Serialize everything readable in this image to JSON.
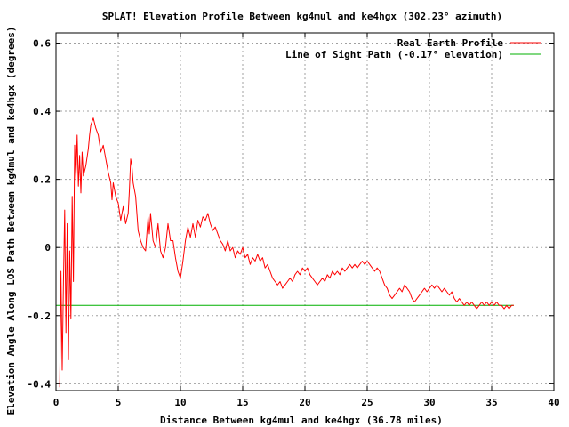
{
  "chart_data": {
    "type": "line",
    "title": "SPLAT! Elevation Profile Between kg4mul and ke4hgx (302.23° azimuth)",
    "xlabel": "Distance Between kg4mul and ke4hgx (36.78 miles)",
    "ylabel": "Elevation Angle Along LOS Path Between kg4mul and ke4hgx (degrees)",
    "xlim": [
      0,
      40
    ],
    "ylim": [
      -0.42,
      0.63
    ],
    "x_ticks": [
      0,
      5,
      10,
      15,
      20,
      25,
      30,
      35,
      40
    ],
    "x_tick_labels": [
      "0",
      "5",
      "10",
      "15",
      "20",
      "25",
      "30",
      "35",
      "40"
    ],
    "y_ticks": [
      -0.4,
      -0.2,
      0,
      0.2,
      0.4,
      0.6
    ],
    "y_tick_labels": [
      "-0.4",
      "-0.2",
      "0",
      "0.2",
      "0.4",
      "0.6"
    ],
    "grid": true,
    "legend_position": "top-right",
    "series": [
      {
        "name": "Real Earth Profile",
        "color": "#ff0000",
        "points": [
          [
            0.3,
            -0.41
          ],
          [
            0.4,
            -0.07
          ],
          [
            0.5,
            -0.36
          ],
          [
            0.6,
            -0.1
          ],
          [
            0.7,
            0.11
          ],
          [
            0.8,
            -0.25
          ],
          [
            0.9,
            0.07
          ],
          [
            1.0,
            -0.33
          ],
          [
            1.1,
            -0.01
          ],
          [
            1.2,
            -0.21
          ],
          [
            1.3,
            0.15
          ],
          [
            1.4,
            -0.1
          ],
          [
            1.5,
            0.3
          ],
          [
            1.6,
            0.2
          ],
          [
            1.7,
            0.33
          ],
          [
            1.8,
            0.18
          ],
          [
            1.9,
            0.27
          ],
          [
            2.0,
            0.16
          ],
          [
            2.1,
            0.28
          ],
          [
            2.2,
            0.21
          ],
          [
            2.4,
            0.24
          ],
          [
            2.6,
            0.29
          ],
          [
            2.7,
            0.33
          ],
          [
            2.8,
            0.36
          ],
          [
            3.0,
            0.38
          ],
          [
            3.2,
            0.35
          ],
          [
            3.4,
            0.33
          ],
          [
            3.6,
            0.28
          ],
          [
            3.8,
            0.3
          ],
          [
            4.0,
            0.26
          ],
          [
            4.2,
            0.22
          ],
          [
            4.4,
            0.19
          ],
          [
            4.5,
            0.14
          ],
          [
            4.6,
            0.19
          ],
          [
            4.8,
            0.15
          ],
          [
            5.0,
            0.13
          ],
          [
            5.2,
            0.08
          ],
          [
            5.4,
            0.12
          ],
          [
            5.6,
            0.07
          ],
          [
            5.8,
            0.1
          ],
          [
            5.9,
            0.17
          ],
          [
            6.0,
            0.26
          ],
          [
            6.1,
            0.24
          ],
          [
            6.2,
            0.19
          ],
          [
            6.4,
            0.15
          ],
          [
            6.6,
            0.05
          ],
          [
            6.8,
            0.02
          ],
          [
            7.0,
            0.0
          ],
          [
            7.2,
            -0.01
          ],
          [
            7.4,
            0.09
          ],
          [
            7.5,
            0.04
          ],
          [
            7.6,
            0.1
          ],
          [
            7.8,
            0.02
          ],
          [
            8.0,
            0.0
          ],
          [
            8.2,
            0.07
          ],
          [
            8.4,
            -0.01
          ],
          [
            8.6,
            -0.03
          ],
          [
            8.8,
            0.0
          ],
          [
            9.0,
            0.07
          ],
          [
            9.2,
            0.02
          ],
          [
            9.4,
            0.02
          ],
          [
            9.6,
            -0.03
          ],
          [
            9.8,
            -0.07
          ],
          [
            10.0,
            -0.09
          ],
          [
            10.2,
            -0.04
          ],
          [
            10.4,
            0.02
          ],
          [
            10.6,
            0.06
          ],
          [
            10.8,
            0.03
          ],
          [
            11.0,
            0.07
          ],
          [
            11.2,
            0.03
          ],
          [
            11.4,
            0.08
          ],
          [
            11.6,
            0.06
          ],
          [
            11.8,
            0.09
          ],
          [
            12.0,
            0.08
          ],
          [
            12.2,
            0.1
          ],
          [
            12.4,
            0.07
          ],
          [
            12.6,
            0.05
          ],
          [
            12.8,
            0.06
          ],
          [
            13.0,
            0.04
          ],
          [
            13.2,
            0.02
          ],
          [
            13.4,
            0.01
          ],
          [
            13.6,
            -0.01
          ],
          [
            13.8,
            0.02
          ],
          [
            14.0,
            -0.01
          ],
          [
            14.2,
            0.0
          ],
          [
            14.4,
            -0.03
          ],
          [
            14.6,
            -0.01
          ],
          [
            14.8,
            -0.02
          ],
          [
            15.0,
            0.0
          ],
          [
            15.2,
            -0.03
          ],
          [
            15.4,
            -0.02
          ],
          [
            15.6,
            -0.05
          ],
          [
            15.8,
            -0.03
          ],
          [
            16.0,
            -0.04
          ],
          [
            16.2,
            -0.02
          ],
          [
            16.4,
            -0.04
          ],
          [
            16.6,
            -0.03
          ],
          [
            16.8,
            -0.06
          ],
          [
            17.0,
            -0.05
          ],
          [
            17.2,
            -0.07
          ],
          [
            17.4,
            -0.09
          ],
          [
            17.6,
            -0.1
          ],
          [
            17.8,
            -0.11
          ],
          [
            18.0,
            -0.1
          ],
          [
            18.2,
            -0.12
          ],
          [
            18.4,
            -0.11
          ],
          [
            18.6,
            -0.1
          ],
          [
            18.8,
            -0.09
          ],
          [
            19.0,
            -0.1
          ],
          [
            19.2,
            -0.08
          ],
          [
            19.4,
            -0.07
          ],
          [
            19.6,
            -0.08
          ],
          [
            19.8,
            -0.06
          ],
          [
            20.0,
            -0.07
          ],
          [
            20.2,
            -0.06
          ],
          [
            20.4,
            -0.08
          ],
          [
            20.6,
            -0.09
          ],
          [
            20.8,
            -0.1
          ],
          [
            21.0,
            -0.11
          ],
          [
            21.2,
            -0.1
          ],
          [
            21.4,
            -0.09
          ],
          [
            21.6,
            -0.1
          ],
          [
            21.8,
            -0.08
          ],
          [
            22.0,
            -0.09
          ],
          [
            22.2,
            -0.07
          ],
          [
            22.4,
            -0.08
          ],
          [
            22.6,
            -0.07
          ],
          [
            22.8,
            -0.08
          ],
          [
            23.0,
            -0.06
          ],
          [
            23.2,
            -0.07
          ],
          [
            23.4,
            -0.06
          ],
          [
            23.6,
            -0.05
          ],
          [
            23.8,
            -0.06
          ],
          [
            24.0,
            -0.05
          ],
          [
            24.2,
            -0.06
          ],
          [
            24.4,
            -0.05
          ],
          [
            24.6,
            -0.04
          ],
          [
            24.8,
            -0.05
          ],
          [
            25.0,
            -0.04
          ],
          [
            25.2,
            -0.05
          ],
          [
            25.4,
            -0.06
          ],
          [
            25.6,
            -0.07
          ],
          [
            25.8,
            -0.06
          ],
          [
            26.0,
            -0.07
          ],
          [
            26.2,
            -0.09
          ],
          [
            26.4,
            -0.11
          ],
          [
            26.6,
            -0.12
          ],
          [
            26.8,
            -0.14
          ],
          [
            27.0,
            -0.15
          ],
          [
            27.2,
            -0.14
          ],
          [
            27.4,
            -0.13
          ],
          [
            27.6,
            -0.12
          ],
          [
            27.8,
            -0.13
          ],
          [
            28.0,
            -0.11
          ],
          [
            28.2,
            -0.12
          ],
          [
            28.4,
            -0.13
          ],
          [
            28.6,
            -0.15
          ],
          [
            28.8,
            -0.16
          ],
          [
            29.0,
            -0.15
          ],
          [
            29.2,
            -0.14
          ],
          [
            29.4,
            -0.13
          ],
          [
            29.6,
            -0.12
          ],
          [
            29.8,
            -0.13
          ],
          [
            30.0,
            -0.12
          ],
          [
            30.2,
            -0.11
          ],
          [
            30.4,
            -0.12
          ],
          [
            30.6,
            -0.11
          ],
          [
            30.8,
            -0.12
          ],
          [
            31.0,
            -0.13
          ],
          [
            31.2,
            -0.12
          ],
          [
            31.4,
            -0.13
          ],
          [
            31.6,
            -0.14
          ],
          [
            31.8,
            -0.13
          ],
          [
            32.0,
            -0.15
          ],
          [
            32.2,
            -0.16
          ],
          [
            32.4,
            -0.15
          ],
          [
            32.6,
            -0.16
          ],
          [
            32.8,
            -0.17
          ],
          [
            33.0,
            -0.16
          ],
          [
            33.2,
            -0.17
          ],
          [
            33.4,
            -0.16
          ],
          [
            33.6,
            -0.17
          ],
          [
            33.8,
            -0.18
          ],
          [
            34.0,
            -0.17
          ],
          [
            34.2,
            -0.16
          ],
          [
            34.4,
            -0.17
          ],
          [
            34.6,
            -0.16
          ],
          [
            34.8,
            -0.17
          ],
          [
            35.0,
            -0.16
          ],
          [
            35.2,
            -0.17
          ],
          [
            35.4,
            -0.16
          ],
          [
            35.6,
            -0.17
          ],
          [
            35.8,
            -0.17
          ],
          [
            36.0,
            -0.18
          ],
          [
            36.2,
            -0.17
          ],
          [
            36.4,
            -0.18
          ],
          [
            36.6,
            -0.17
          ],
          [
            36.78,
            -0.17
          ]
        ]
      },
      {
        "name": "Line of Sight Path (-0.17° elevation)",
        "color": "#00b000",
        "points": [
          [
            0,
            -0.17
          ],
          [
            36.78,
            -0.17
          ]
        ]
      }
    ]
  }
}
